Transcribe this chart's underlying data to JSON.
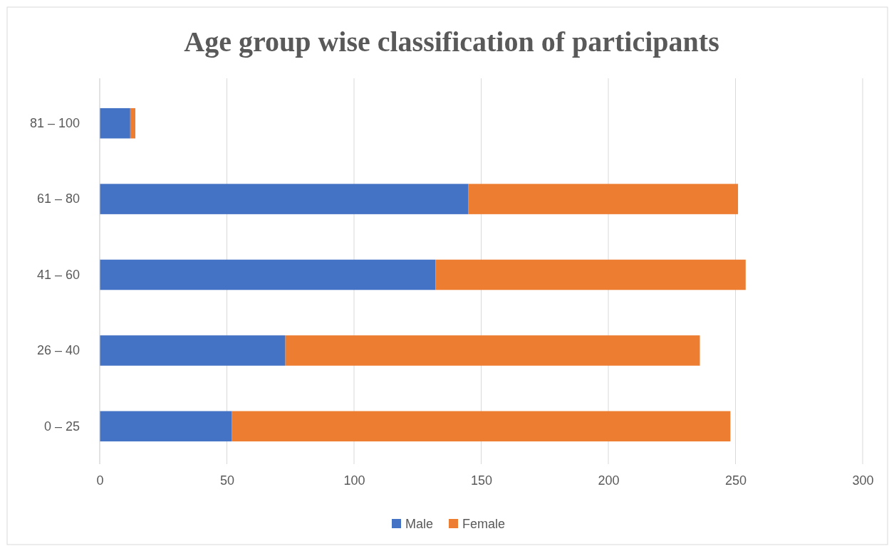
{
  "chart_data": {
    "type": "bar",
    "orientation": "horizontal",
    "stacked": true,
    "title": "Age group wise classification of participants",
    "categories": [
      "81 – 100",
      "61 – 80",
      "41 – 60",
      "26 – 40",
      "0 – 25"
    ],
    "series": [
      {
        "name": "Male",
        "color": "#4472c4",
        "values": [
          12,
          145,
          132,
          73,
          52
        ]
      },
      {
        "name": "Female",
        "color": "#ed7d31",
        "values": [
          2,
          106,
          122,
          163,
          196
        ]
      }
    ],
    "xlim": [
      0,
      300
    ],
    "xticks": [
      0,
      50,
      100,
      150,
      200,
      250,
      300
    ],
    "grid": "x",
    "legend": "bottom"
  }
}
